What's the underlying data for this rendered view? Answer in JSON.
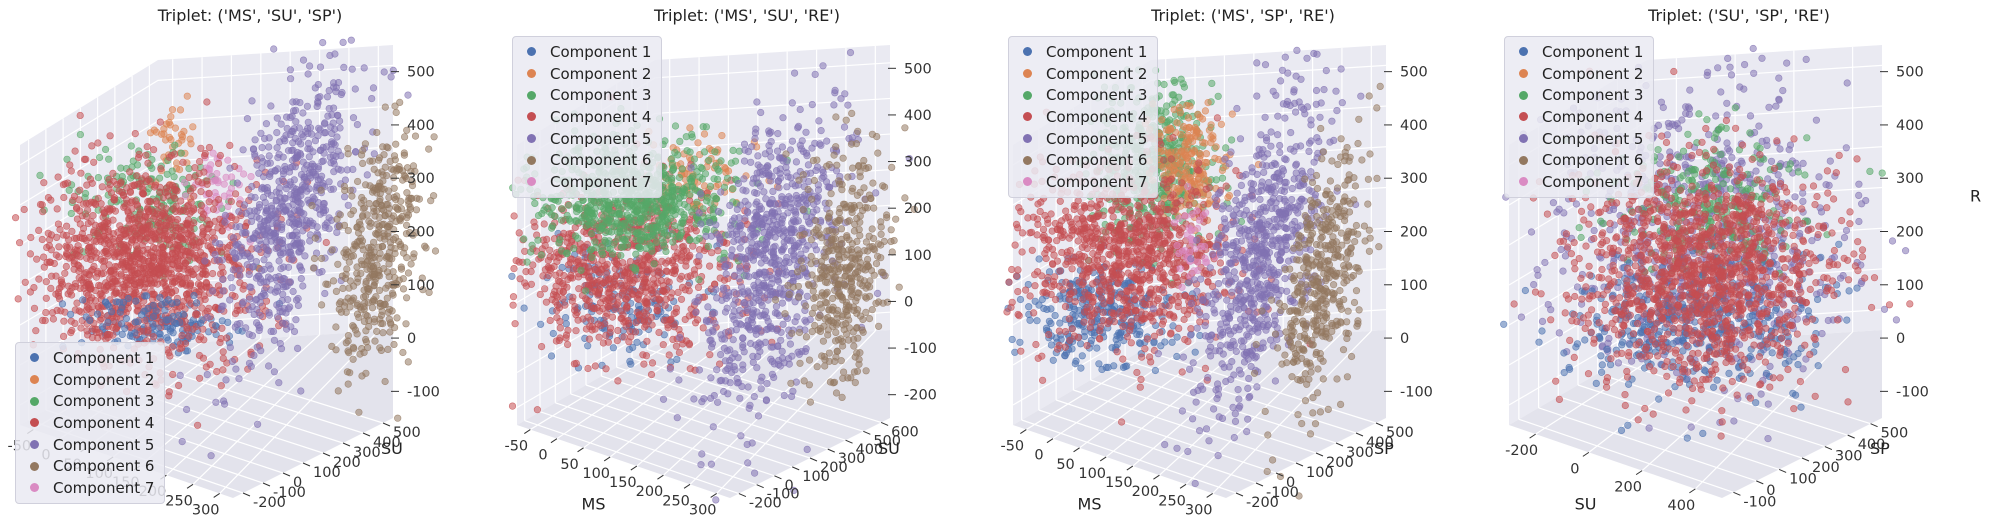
{
  "colors": {
    "background": "#eaeaf2",
    "grid": "#ffffff",
    "components": [
      "#4c72b0",
      "#dd8452",
      "#55a868",
      "#c44e52",
      "#8172b3",
      "#937860",
      "#da8bc3"
    ]
  },
  "legend_labels": [
    "Component 1",
    "Component 2",
    "Component 3",
    "Component 4",
    "Component 5",
    "Component 6",
    "Component 7"
  ],
  "chart_data": [
    {
      "type": "scatter",
      "projection": "3d",
      "title": "Triplet: ('MS', 'SU', 'SP')",
      "xlabel": "",
      "ylabel": "SU",
      "zlabel": "",
      "x_ticks": [
        "-50",
        "0",
        "50",
        "100",
        "150",
        "200",
        "250",
        "300"
      ],
      "y_ticks": [
        "-200",
        "-100",
        "0",
        "100",
        "200",
        "300",
        "400",
        "500"
      ],
      "z_ticks": [
        "-100",
        "0",
        "100",
        "200",
        "300",
        "400",
        "500"
      ],
      "legend_position": "lower-left",
      "grid": true,
      "clusters": [
        {
          "component": "Component 1",
          "spread": "low"
        },
        {
          "component": "Component 2",
          "spread": "small, above red cluster"
        },
        {
          "component": "Component 3",
          "spread": "behind red cluster"
        },
        {
          "component": "Component 4",
          "spread": "large, dense, left"
        },
        {
          "component": "Component 5",
          "spread": "elongated, center"
        },
        {
          "component": "Component 6",
          "spread": "right"
        },
        {
          "component": "Component 7",
          "spread": "small, above red cluster"
        }
      ]
    },
    {
      "type": "scatter",
      "projection": "3d",
      "title": "Triplet: ('MS', 'SU', 'RE')",
      "xlabel": "MS",
      "ylabel": "SU",
      "zlabel": "",
      "x_ticks": [
        "-50",
        "0",
        "50",
        "100",
        "150",
        "200",
        "250",
        "300"
      ],
      "y_ticks": [
        "-200",
        "-100",
        "0",
        "100",
        "200",
        "300",
        "400",
        "500",
        "600"
      ],
      "z_ticks": [
        "-200",
        "-100",
        "0",
        "100",
        "200",
        "300",
        "400",
        "500"
      ],
      "legend_position": "upper-left",
      "grid": true
    },
    {
      "type": "scatter",
      "projection": "3d",
      "title": "Triplet: ('MS', 'SP', 'RE')",
      "xlabel": "MS",
      "ylabel": "SP",
      "zlabel": "",
      "x_ticks": [
        "-50",
        "0",
        "50",
        "100",
        "150",
        "200",
        "250",
        "300"
      ],
      "y_ticks": [
        "-200",
        "-100",
        "0",
        "100",
        "200",
        "300",
        "400",
        "500"
      ],
      "z_ticks": [
        "-100",
        "0",
        "100",
        "200",
        "300",
        "400",
        "500"
      ],
      "legend_position": "upper-left",
      "grid": true
    },
    {
      "type": "scatter",
      "projection": "3d",
      "title": "Triplet: ('SU', 'SP', 'RE')",
      "xlabel": "SU",
      "ylabel": "SP",
      "zlabel": "R",
      "x_ticks": [
        "-200",
        "0",
        "200",
        "400"
      ],
      "y_ticks": [
        "-100",
        "0",
        "100",
        "200",
        "300",
        "400",
        "500"
      ],
      "z_ticks": [
        "-100",
        "0",
        "100",
        "200",
        "300",
        "400",
        "500"
      ],
      "legend_position": "upper-left",
      "grid": true
    }
  ]
}
